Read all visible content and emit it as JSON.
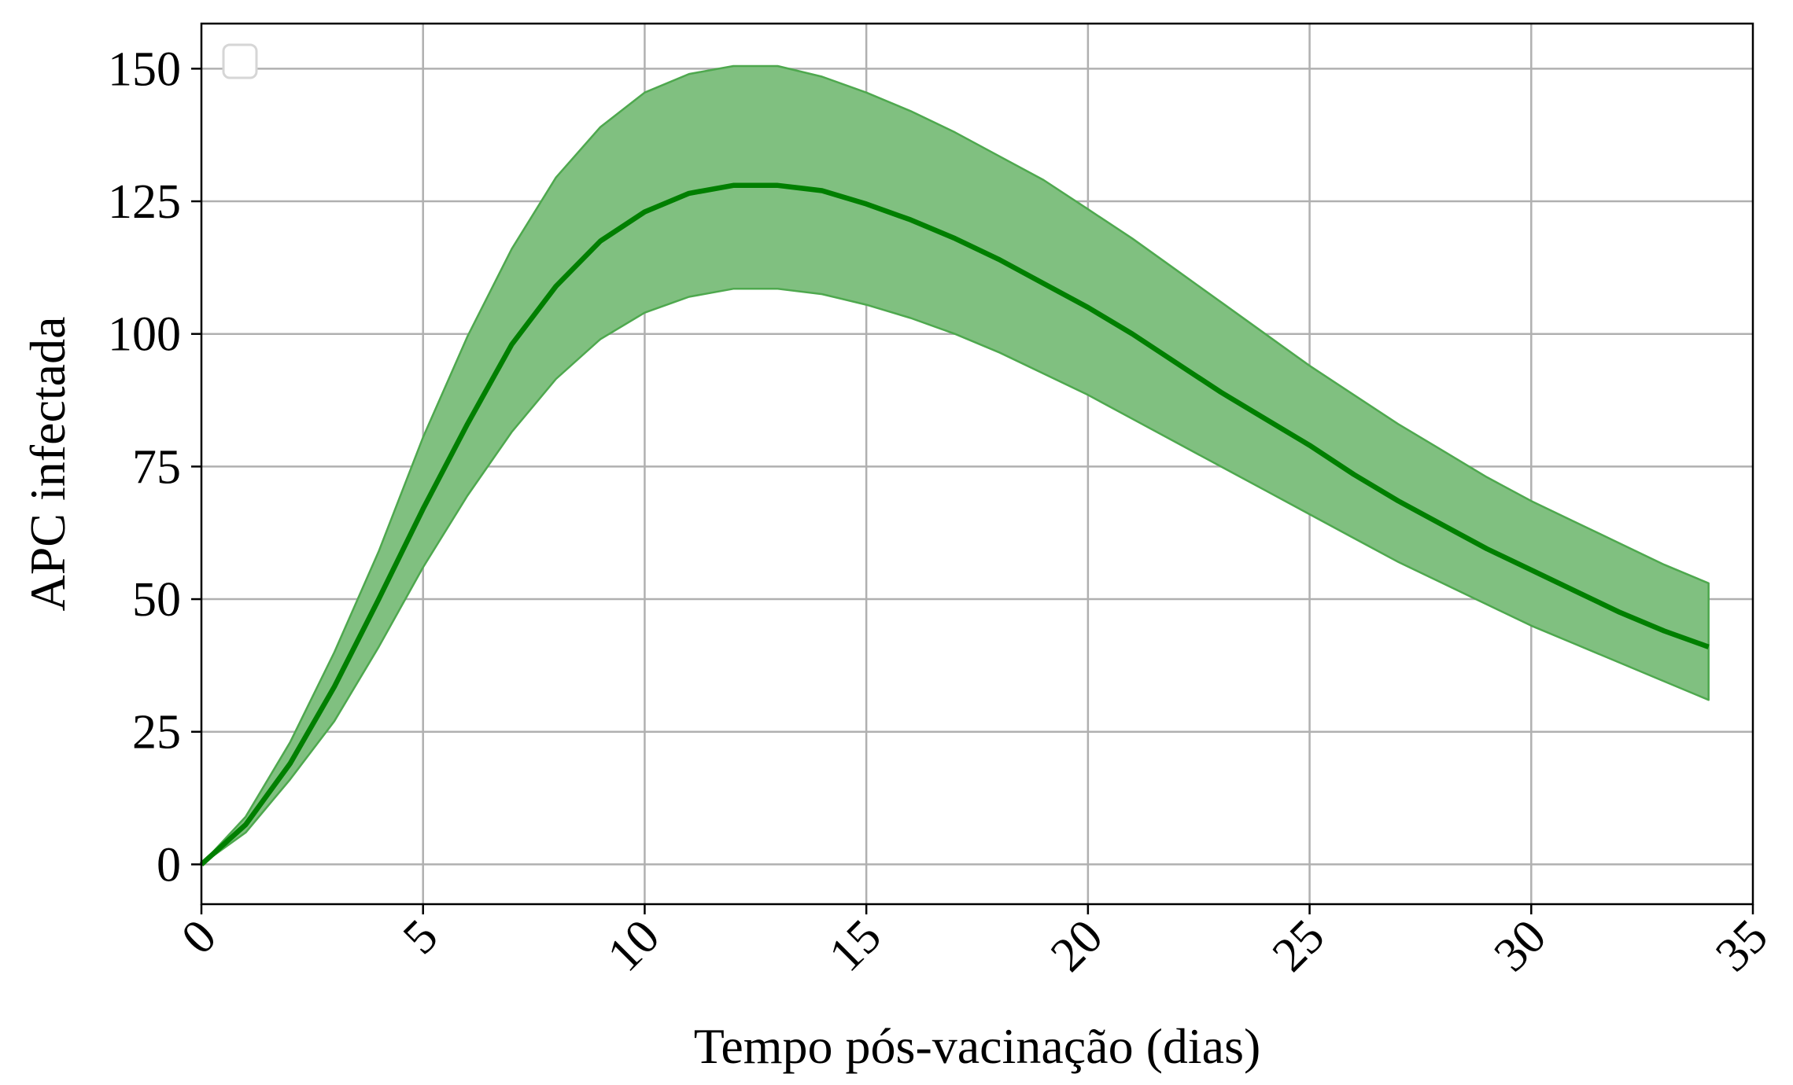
{
  "chart_data": {
    "type": "line",
    "xlabel": "Tempo pós-vacinação (dias)",
    "ylabel": "APC infectada",
    "xlim": [
      0,
      35
    ],
    "ylim": [
      -7.5,
      158.5
    ],
    "xticks": [
      0,
      5,
      10,
      15,
      20,
      25,
      30,
      35
    ],
    "yticks": [
      0,
      25,
      50,
      75,
      100,
      125,
      150
    ],
    "grid": true,
    "legend": "top-left (empty)",
    "colors": {
      "line": "#007f00",
      "band_fill": "#80c080",
      "band_edge": "#4ea84e",
      "grid": "#b0b0b0"
    },
    "x": [
      0,
      1,
      2,
      3,
      4,
      5,
      6,
      7,
      8,
      9,
      10,
      11,
      12,
      13,
      14,
      15,
      16,
      17,
      18,
      19,
      20,
      21,
      22,
      23,
      24,
      25,
      26,
      27,
      28,
      29,
      30,
      31,
      32,
      33,
      34
    ],
    "series": [
      {
        "values": [
          0,
          7.5,
          19,
          33.5,
          50,
          67,
          83,
          98,
          109,
          117.5,
          123,
          126.5,
          128,
          128,
          127,
          124.5,
          121.5,
          118,
          114,
          109.5,
          105,
          100,
          94.5,
          89,
          84,
          79,
          73.5,
          68.5,
          64,
          59.5,
          55.5,
          51.5,
          47.5,
          44,
          41
        ],
        "lower": [
          0,
          6,
          16,
          27,
          41,
          56,
          69.5,
          81.5,
          91.5,
          99,
          104,
          107,
          108.5,
          108.5,
          107.5,
          105.5,
          103,
          100,
          96.5,
          92.5,
          88.5,
          84,
          79.5,
          75,
          70.5,
          66,
          61.5,
          57,
          53,
          49,
          45,
          41.5,
          38,
          34.5,
          31
        ],
        "upper": [
          0,
          9,
          23,
          40,
          59,
          80.5,
          99.5,
          116,
          129.5,
          139,
          145.5,
          149,
          150.5,
          150.5,
          148.5,
          145.5,
          142,
          138,
          133.5,
          129,
          123.5,
          118,
          112,
          106,
          100,
          94,
          88.5,
          83,
          78,
          73,
          68.5,
          64.5,
          60.5,
          56.5,
          53
        ]
      }
    ]
  }
}
